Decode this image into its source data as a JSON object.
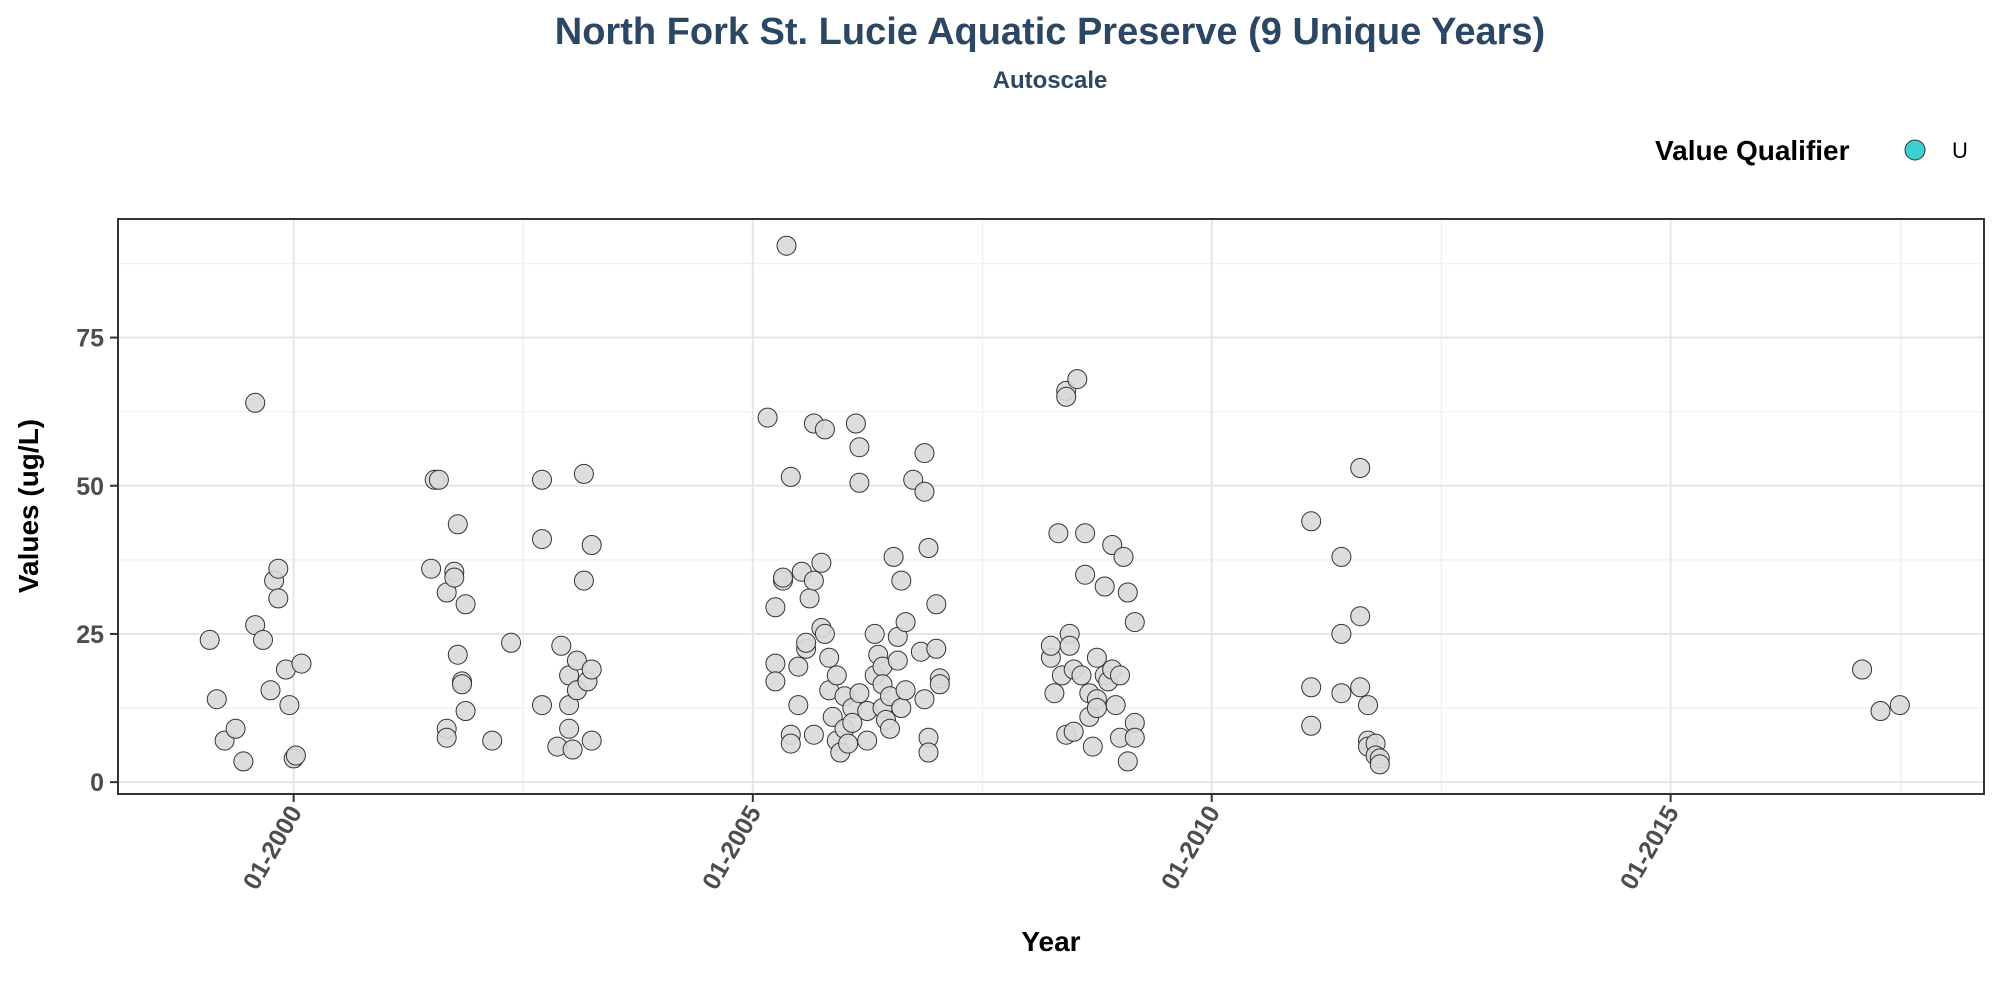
{
  "chart_data": {
    "type": "scatter",
    "title": "North Fork St. Lucie Aquatic Preserve (9 Unique Years)",
    "subtitle": "Autoscale",
    "xlabel": "Year",
    "ylabel": "Values (ug/L)",
    "xlim": [
      "1998-02-01",
      "2018-06-01"
    ],
    "ylim": [
      -2,
      95
    ],
    "x_ticks": [
      {
        "value": "2000-01-01",
        "label": "01-2000"
      },
      {
        "value": "2005-01-01",
        "label": "01-2005"
      },
      {
        "value": "2010-01-01",
        "label": "01-2010"
      },
      {
        "value": "2015-01-01",
        "label": "01-2015"
      }
    ],
    "y_ticks": [
      {
        "value": 0,
        "label": "0"
      },
      {
        "value": 25,
        "label": "25"
      },
      {
        "value": 50,
        "label": "50"
      },
      {
        "value": 75,
        "label": "75"
      }
    ],
    "grid": true,
    "legend": {
      "title": "Value Qualifier",
      "position": "top-right",
      "entries": [
        {
          "label": "U",
          "color": "#3ecfd0"
        }
      ]
    },
    "point_color": "#d9d9d9",
    "series": [
      {
        "points": [
          [
            "1999-02-01",
            24
          ],
          [
            "1999-03-01",
            14
          ],
          [
            "1999-04-01",
            7
          ],
          [
            "1999-05-15",
            9
          ],
          [
            "1999-06-15",
            3.5
          ],
          [
            "1999-08-01",
            64
          ],
          [
            "1999-08-01",
            26.5
          ],
          [
            "1999-09-01",
            24
          ],
          [
            "1999-10-01",
            15.5
          ],
          [
            "1999-10-15",
            34
          ],
          [
            "1999-11-01",
            36
          ],
          [
            "1999-11-01",
            31
          ],
          [
            "1999-12-01",
            19
          ],
          [
            "1999-12-15",
            13
          ],
          [
            "2000-01-01",
            4
          ],
          [
            "2000-01-10",
            4.5
          ],
          [
            "2000-02-01",
            20
          ],
          [
            "2001-07-01",
            36
          ],
          [
            "2001-07-15",
            51
          ],
          [
            "2001-08-01",
            51
          ],
          [
            "2001-09-01",
            32
          ],
          [
            "2001-09-01",
            9
          ],
          [
            "2001-09-01",
            7.5
          ],
          [
            "2001-10-01",
            35.5
          ],
          [
            "2001-10-01",
            34.5
          ],
          [
            "2001-10-15",
            43.5
          ],
          [
            "2001-10-15",
            21.5
          ],
          [
            "2001-11-01",
            17
          ],
          [
            "2001-11-01",
            16.5
          ],
          [
            "2001-11-15",
            30
          ],
          [
            "2001-11-15",
            12
          ],
          [
            "2002-03-01",
            7
          ],
          [
            "2002-05-15",
            23.5
          ],
          [
            "2002-09-15",
            51
          ],
          [
            "2002-09-15",
            41
          ],
          [
            "2002-09-15",
            13
          ],
          [
            "2002-11-15",
            6
          ],
          [
            "2002-12-01",
            23
          ],
          [
            "2003-01-01",
            13
          ],
          [
            "2003-01-01",
            18
          ],
          [
            "2003-01-01",
            9
          ],
          [
            "2003-01-15",
            5.5
          ],
          [
            "2003-02-01",
            20.5
          ],
          [
            "2003-02-01",
            15.5
          ],
          [
            "2003-03-01",
            34
          ],
          [
            "2003-03-01",
            52
          ],
          [
            "2003-03-15",
            17
          ],
          [
            "2003-04-01",
            40
          ],
          [
            "2003-04-01",
            19
          ],
          [
            "2003-04-01",
            7
          ],
          [
            "2005-03-01",
            61.5
          ],
          [
            "2005-04-01",
            29.5
          ],
          [
            "2005-04-01",
            20
          ],
          [
            "2005-04-01",
            17
          ],
          [
            "2005-05-01",
            34
          ],
          [
            "2005-05-01",
            34.5
          ],
          [
            "2005-05-15",
            90.5
          ],
          [
            "2005-06-01",
            51.5
          ],
          [
            "2005-06-01",
            8
          ],
          [
            "2005-06-01",
            6.5
          ],
          [
            "2005-07-01",
            19.5
          ],
          [
            "2005-07-01",
            13
          ],
          [
            "2005-07-15",
            35.5
          ],
          [
            "2005-08-01",
            22.5
          ],
          [
            "2005-08-01",
            23.5
          ],
          [
            "2005-08-15",
            31
          ],
          [
            "2005-09-01",
            60.5
          ],
          [
            "2005-09-01",
            34
          ],
          [
            "2005-09-01",
            8
          ],
          [
            "2005-10-01",
            37
          ],
          [
            "2005-10-01",
            26
          ],
          [
            "2005-10-15",
            59.5
          ],
          [
            "2005-10-15",
            25
          ],
          [
            "2005-11-01",
            15.5
          ],
          [
            "2005-11-01",
            21
          ],
          [
            "2005-11-15",
            11
          ],
          [
            "2005-12-01",
            18
          ],
          [
            "2005-12-01",
            7
          ],
          [
            "2005-12-15",
            5
          ],
          [
            "2006-01-01",
            14.5
          ],
          [
            "2006-01-01",
            9
          ],
          [
            "2006-01-15",
            6.5
          ],
          [
            "2006-02-01",
            12.5
          ],
          [
            "2006-02-01",
            10
          ],
          [
            "2006-02-15",
            60.5
          ],
          [
            "2006-03-01",
            56.5
          ],
          [
            "2006-03-01",
            50.5
          ],
          [
            "2006-03-01",
            15
          ],
          [
            "2006-04-01",
            12
          ],
          [
            "2006-04-01",
            7
          ],
          [
            "2006-05-01",
            25
          ],
          [
            "2006-05-01",
            18
          ],
          [
            "2006-05-15",
            21.5
          ],
          [
            "2006-06-01",
            19.5
          ],
          [
            "2006-06-01",
            16.5
          ],
          [
            "2006-06-01",
            12.5
          ],
          [
            "2006-06-15",
            10.5
          ],
          [
            "2006-07-01",
            14.5
          ],
          [
            "2006-07-01",
            9
          ],
          [
            "2006-07-15",
            38
          ],
          [
            "2006-08-01",
            24.5
          ],
          [
            "2006-08-01",
            20.5
          ],
          [
            "2006-08-15",
            12.5
          ],
          [
            "2006-08-15",
            34
          ],
          [
            "2006-09-01",
            27
          ],
          [
            "2006-09-01",
            15.5
          ],
          [
            "2006-10-01",
            51
          ],
          [
            "2006-11-01",
            22
          ],
          [
            "2006-11-15",
            14
          ],
          [
            "2006-11-15",
            55.5
          ],
          [
            "2006-11-15",
            49
          ],
          [
            "2006-12-01",
            39.5
          ],
          [
            "2006-12-01",
            7.5
          ],
          [
            "2006-12-01",
            5
          ],
          [
            "2007-01-01",
            30
          ],
          [
            "2007-01-01",
            22.5
          ],
          [
            "2007-01-15",
            17.5
          ],
          [
            "2007-01-15",
            16.5
          ],
          [
            "2008-04-01",
            21
          ],
          [
            "2008-04-01",
            23
          ],
          [
            "2008-04-15",
            15
          ],
          [
            "2008-05-01",
            42
          ],
          [
            "2008-05-15",
            18
          ],
          [
            "2008-06-01",
            8
          ],
          [
            "2008-06-01",
            66
          ],
          [
            "2008-06-01",
            65
          ],
          [
            "2008-06-15",
            25
          ],
          [
            "2008-06-15",
            23
          ],
          [
            "2008-07-01",
            8.5
          ],
          [
            "2008-07-01",
            19
          ],
          [
            "2008-07-15",
            68
          ],
          [
            "2008-08-01",
            18
          ],
          [
            "2008-08-15",
            35
          ],
          [
            "2008-08-15",
            42
          ],
          [
            "2008-09-01",
            15
          ],
          [
            "2008-09-01",
            11
          ],
          [
            "2008-09-15",
            6
          ],
          [
            "2008-10-01",
            21
          ],
          [
            "2008-10-01",
            14
          ],
          [
            "2008-10-01",
            12.5
          ],
          [
            "2008-11-01",
            33
          ],
          [
            "2008-11-01",
            18
          ],
          [
            "2008-11-15",
            17
          ],
          [
            "2008-12-01",
            40
          ],
          [
            "2008-12-01",
            19
          ],
          [
            "2008-12-15",
            13
          ],
          [
            "2009-01-01",
            18
          ],
          [
            "2009-01-01",
            7.5
          ],
          [
            "2009-01-15",
            38
          ],
          [
            "2009-02-01",
            32
          ],
          [
            "2009-02-01",
            3.5
          ],
          [
            "2009-03-01",
            27
          ],
          [
            "2009-03-01",
            10
          ],
          [
            "2009-03-01",
            7.5
          ],
          [
            "2011-02-01",
            44
          ],
          [
            "2011-02-01",
            16
          ],
          [
            "2011-02-01",
            9.5
          ],
          [
            "2011-06-01",
            38
          ],
          [
            "2011-06-01",
            25
          ],
          [
            "2011-06-01",
            15
          ],
          [
            "2011-08-15",
            53
          ],
          [
            "2011-08-15",
            28
          ],
          [
            "2011-08-15",
            16
          ],
          [
            "2011-09-15",
            13
          ],
          [
            "2011-09-15",
            7
          ],
          [
            "2011-09-15",
            6
          ],
          [
            "2011-10-15",
            6.5
          ],
          [
            "2011-10-15",
            4.5
          ],
          [
            "2011-11-01",
            4
          ],
          [
            "2011-11-01",
            3
          ],
          [
            "2017-02-01",
            19
          ],
          [
            "2017-04-15",
            12
          ],
          [
            "2017-07-01",
            13
          ]
        ]
      }
    ]
  }
}
